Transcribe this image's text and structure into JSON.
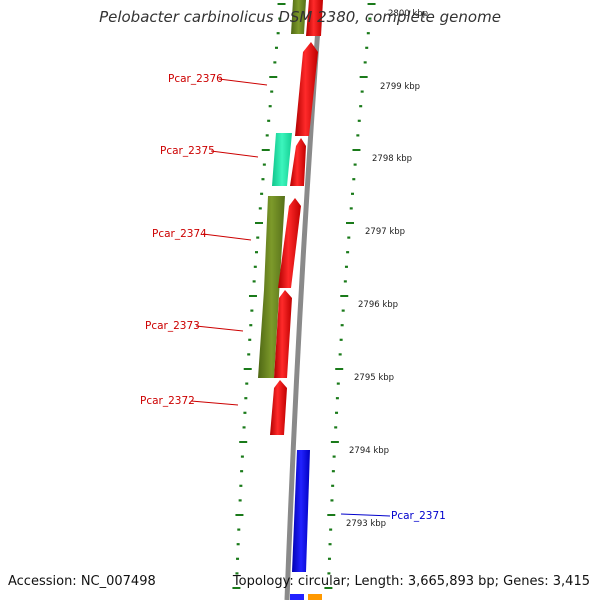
{
  "title": "Pelobacter carbinolicus DSM 2380, complete genome",
  "footer": {
    "accession": "Accession: NC_007498",
    "summary": "Topology: circular; Length: 3,665,893 bp; Genes: 3,415"
  },
  "colors": {
    "forward_gene": "#ff0000",
    "olive_gene": "#6f8a1e",
    "teal_gene": "#1de3a8",
    "blue_gene": "#0000ff",
    "orange_gene": "#ff9900",
    "backbone": "#888888",
    "tick": "#1a7a1a",
    "red_label": "#cc0000",
    "blue_label": "#0000cc"
  },
  "ruler": {
    "labels": [
      "2800 kbp",
      "2799 kbp",
      "2798 kbp",
      "2797 kbp",
      "2796 kbp",
      "2795 kbp",
      "2794 kbp",
      "2793 kbp"
    ]
  },
  "gene_labels": [
    {
      "name": "Pcar_2376",
      "color": "red"
    },
    {
      "name": "Pcar_2375",
      "color": "red"
    },
    {
      "name": "Pcar_2374",
      "color": "red"
    },
    {
      "name": "Pcar_2373",
      "color": "red"
    },
    {
      "name": "Pcar_2372",
      "color": "red"
    },
    {
      "name": "Pcar_2371",
      "color": "blue"
    }
  ]
}
